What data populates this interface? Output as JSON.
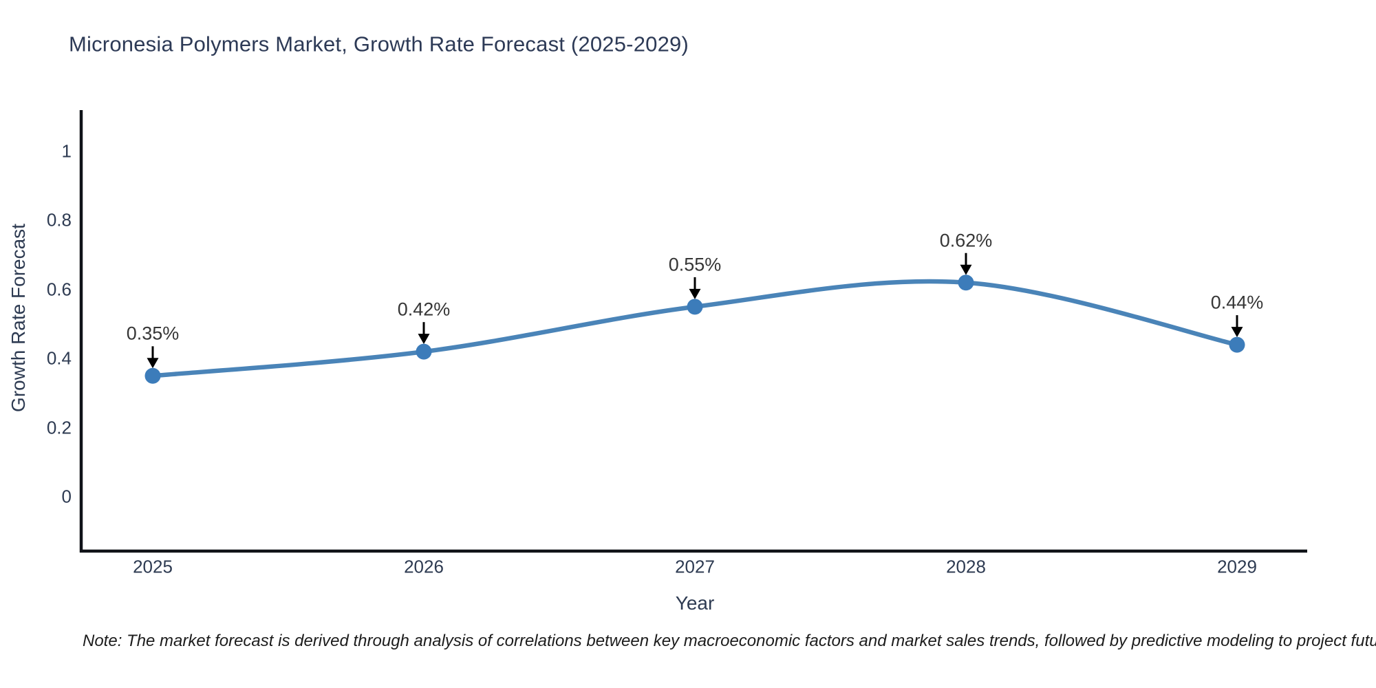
{
  "title": "Micronesia Polymers Market, Growth Rate Forecast (2025-2029)",
  "note": "Note: The market forecast is derived through analysis of correlations between key macroeconomic factors and market sales trends, followed by predictive modeling to project future sales",
  "chart_data": {
    "type": "line",
    "title": "Micronesia Polymers Market, Growth Rate Forecast (2025-2029)",
    "xlabel": "Year",
    "ylabel": "Growth Rate Forecast",
    "categories": [
      "2025",
      "2026",
      "2027",
      "2028",
      "2029"
    ],
    "series": [
      {
        "name": "Growth Rate Forecast",
        "values": [
          0.35,
          0.42,
          0.55,
          0.62,
          0.44
        ],
        "point_labels": [
          "0.35%",
          "0.42%",
          "0.55%",
          "0.62%",
          "0.44%"
        ]
      }
    ],
    "ytick_labels": [
      "0",
      "0.2",
      "0.4",
      "0.6",
      "0.8",
      "1"
    ],
    "ytick_values": [
      0,
      0.2,
      0.4,
      0.6,
      0.8,
      1
    ],
    "ylim": [
      -0.16,
      1.12
    ],
    "grid": false,
    "legend_position": "none",
    "line_shape": "spline",
    "marker_style": "circle",
    "annotation_arrows": true,
    "colors": {
      "line": "#4a84b8",
      "marker": "#3c7cba",
      "axis": "#101318",
      "title_text": "#2d3a56",
      "tick_text": "#2e3b52",
      "axis_title_text": "#2e3b52",
      "annotation_text": "#363636",
      "arrow": "#000000",
      "note_text": "#1c1c1c",
      "background": "#ffffff"
    }
  }
}
